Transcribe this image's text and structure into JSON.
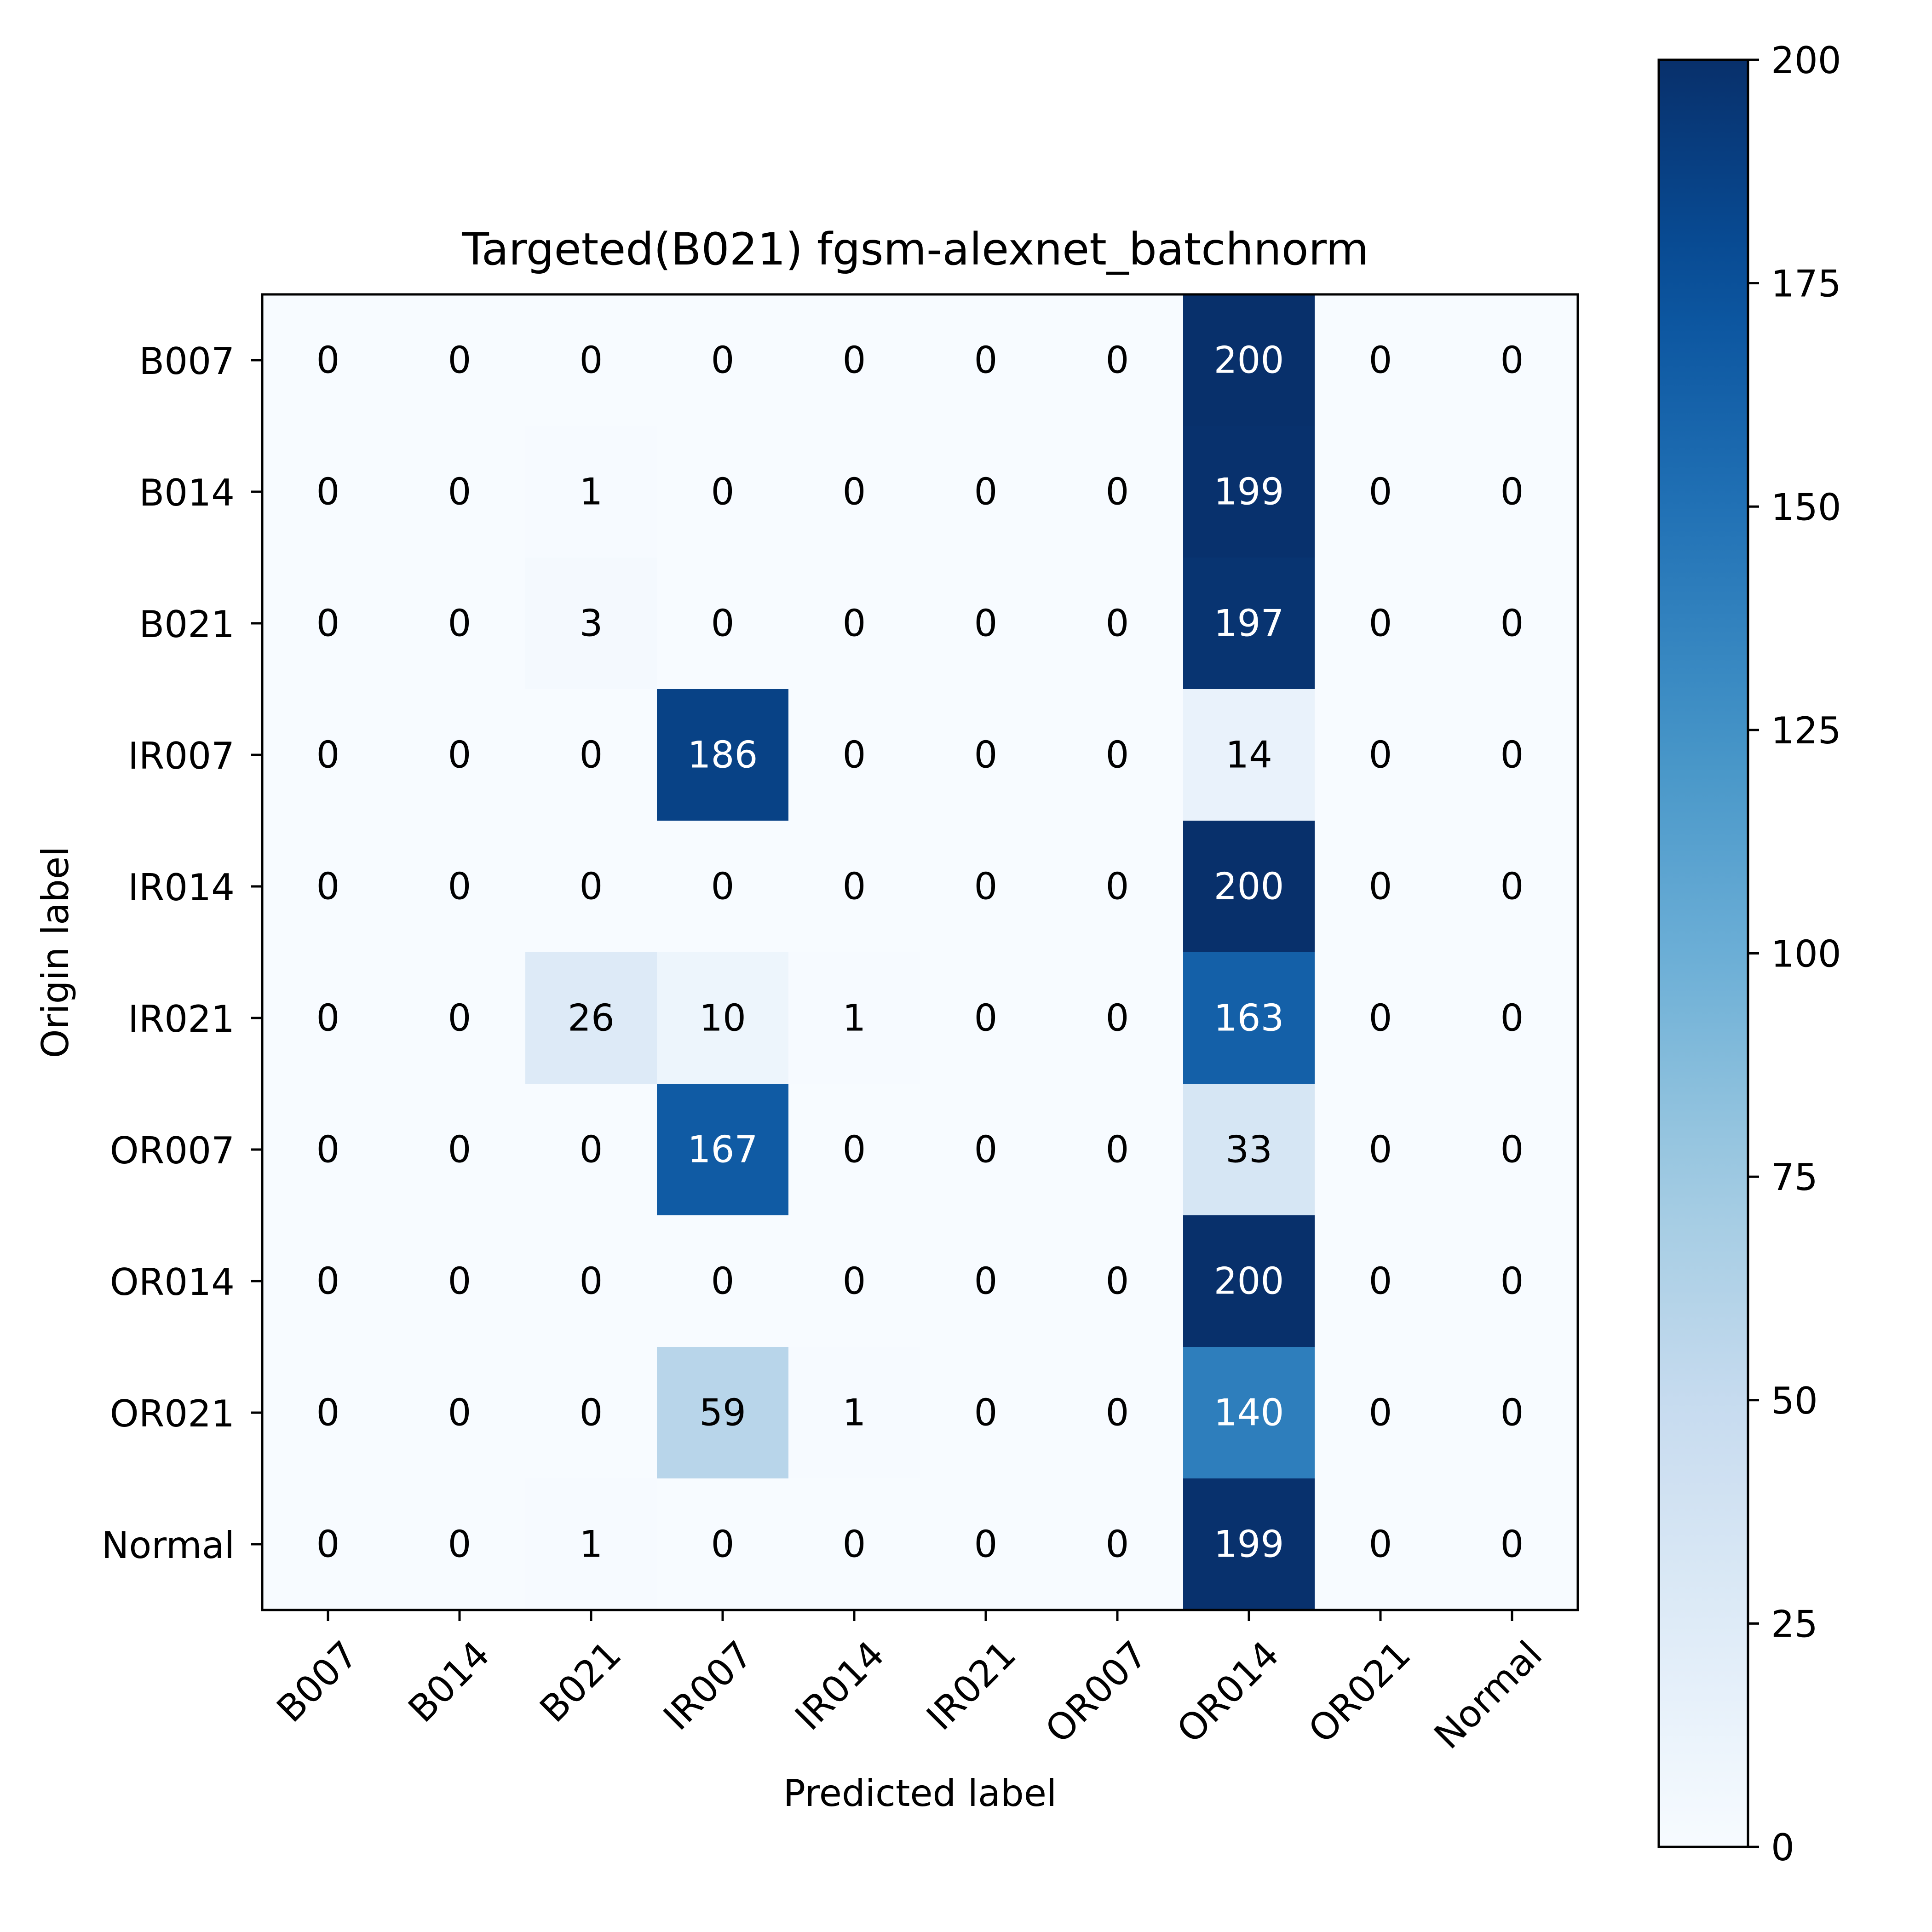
{
  "chart_data": {
    "type": "heatmap",
    "title": "Targeted(B021) fgsm-alexnet_batchnorm",
    "xlabel": "Predicted label",
    "ylabel": "Origin label",
    "x_categories": [
      "B007",
      "B014",
      "B021",
      "IR007",
      "IR014",
      "IR021",
      "OR007",
      "OR014",
      "OR021",
      "Normal"
    ],
    "y_categories": [
      "B007",
      "B014",
      "B021",
      "IR007",
      "IR014",
      "IR021",
      "OR007",
      "OR014",
      "OR021",
      "Normal"
    ],
    "values": [
      [
        0,
        0,
        0,
        0,
        0,
        0,
        0,
        200,
        0,
        0
      ],
      [
        0,
        0,
        1,
        0,
        0,
        0,
        0,
        199,
        0,
        0
      ],
      [
        0,
        0,
        3,
        0,
        0,
        0,
        0,
        197,
        0,
        0
      ],
      [
        0,
        0,
        0,
        186,
        0,
        0,
        0,
        14,
        0,
        0
      ],
      [
        0,
        0,
        0,
        0,
        0,
        0,
        0,
        200,
        0,
        0
      ],
      [
        0,
        0,
        26,
        10,
        1,
        0,
        0,
        163,
        0,
        0
      ],
      [
        0,
        0,
        0,
        167,
        0,
        0,
        0,
        33,
        0,
        0
      ],
      [
        0,
        0,
        0,
        0,
        0,
        0,
        0,
        200,
        0,
        0
      ],
      [
        0,
        0,
        0,
        59,
        1,
        0,
        0,
        140,
        0,
        0
      ],
      [
        0,
        0,
        1,
        0,
        0,
        0,
        0,
        199,
        0,
        0
      ]
    ],
    "colorbar": {
      "colormap": "Blues",
      "range": [
        0,
        200
      ],
      "ticks": [
        0,
        25,
        50,
        75,
        100,
        125,
        150,
        175,
        200
      ]
    },
    "grid": false,
    "legend": "none"
  }
}
